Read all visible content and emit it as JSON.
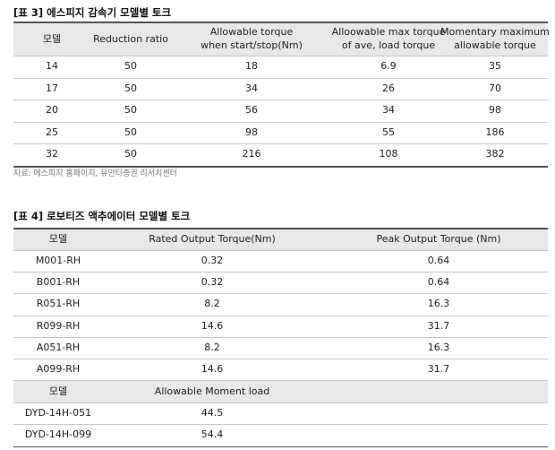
{
  "table3": {
    "title": "[표 3] 에스피지 감속기 모델별 토크",
    "headers": [
      [
        "모델"
      ],
      [
        "Reduction ratio"
      ],
      [
        "Allowable torque",
        "when start/stop(Nm)"
      ],
      [
        "Alloowable max torque",
        "of ave, load torque"
      ],
      [
        "Momentary maximum",
        "allowable torque"
      ]
    ],
    "rows": [
      [
        14,
        50,
        18,
        6.9,
        35
      ],
      [
        17,
        50,
        34,
        26,
        70
      ],
      [
        20,
        50,
        56,
        34,
        98
      ],
      [
        25,
        50,
        98,
        55,
        186
      ],
      [
        32,
        50,
        216,
        108,
        382
      ]
    ],
    "source": "자료: 에스피지 홈페이지, 유안타증권 리서치센터"
  },
  "table4": {
    "title": "[표 4] 로보티즈 액추에이터 모델별 토크",
    "headers": [
      "모델",
      "Rated Output Torque(Nm)",
      "Peak Output Torque (Nm)"
    ],
    "rows": [
      [
        "M001-RH",
        0.32,
        0.64
      ],
      [
        "B001-RH",
        0.32,
        0.64
      ],
      [
        "R051-RH",
        8.2,
        16.3
      ],
      [
        "R099-RH",
        14.6,
        31.7
      ],
      [
        "A051-RH",
        8.2,
        16.3
      ],
      [
        "A099-RH",
        14.6,
        31.7
      ]
    ],
    "headers2": [
      "모델",
      "Allowable Moment load"
    ],
    "rows2": [
      [
        "DYD-14H-051",
        44.5
      ],
      [
        "DYD-14H-099",
        54.4
      ]
    ]
  }
}
